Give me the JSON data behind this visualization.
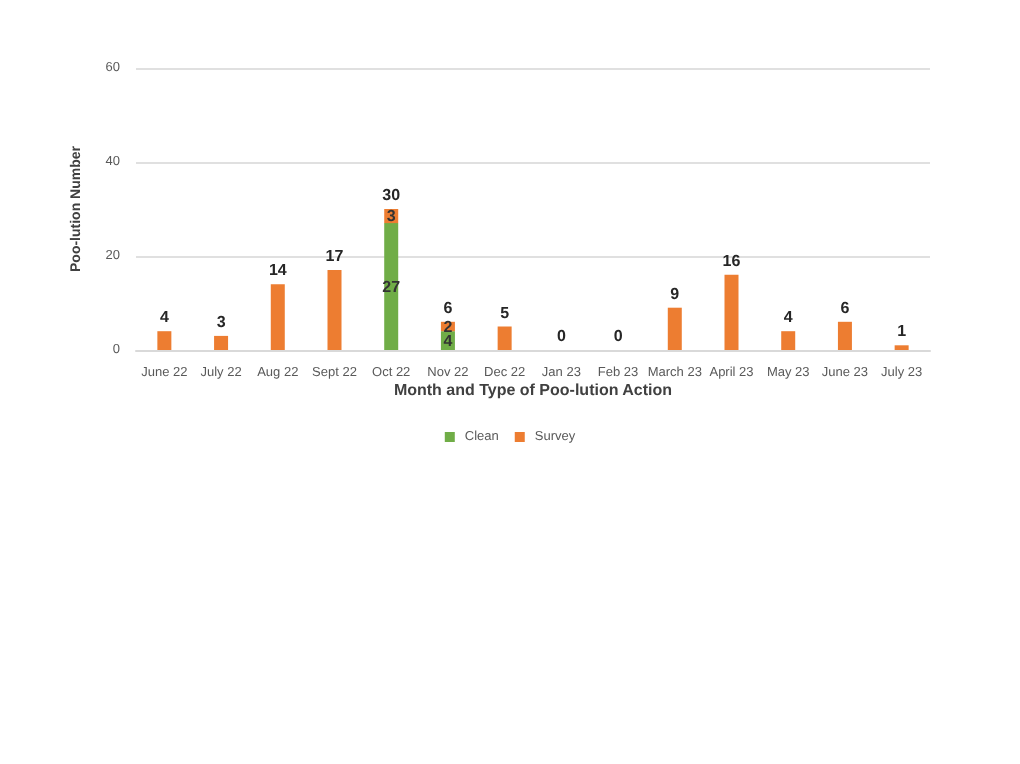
{
  "chart_data": {
    "type": "bar",
    "stacked": true,
    "xlabel": "Month and Type of Poo-lution Action",
    "ylabel": "Poo-lution Number",
    "categories": [
      "June 22",
      "July 22",
      "Aug 22",
      "Sept 22",
      "Oct 22",
      "Nov 22",
      "Dec 22",
      "Jan 23",
      "Feb 23",
      "March 23",
      "April 23",
      "May 23",
      "June 23",
      "July 23"
    ],
    "series": [
      {
        "name": "Clean",
        "color": "#70ad47",
        "values": [
          null,
          null,
          null,
          null,
          27,
          4,
          null,
          null,
          null,
          null,
          null,
          null,
          null,
          null
        ],
        "value_labels": [
          null,
          null,
          null,
          null,
          "27",
          "4",
          null,
          null,
          null,
          null,
          null,
          null,
          null,
          null
        ]
      },
      {
        "name": "Survey",
        "color": "#ed7d31",
        "values": [
          4,
          3,
          14,
          17,
          3,
          2,
          5,
          0,
          0,
          9,
          16,
          4,
          6,
          1
        ],
        "value_labels": [
          null,
          null,
          null,
          null,
          "3",
          "2",
          null,
          null,
          null,
          null,
          null,
          null,
          null,
          null
        ]
      }
    ],
    "totals": [
      "4",
      "3",
      "14",
      "17",
      "30",
      "6",
      "5",
      "0",
      "0",
      "9",
      "16",
      "4",
      "6",
      "1"
    ],
    "ylim": [
      0,
      60
    ],
    "yticks": [
      0,
      20,
      40,
      60
    ],
    "grid": "y",
    "legend": "bottom"
  }
}
